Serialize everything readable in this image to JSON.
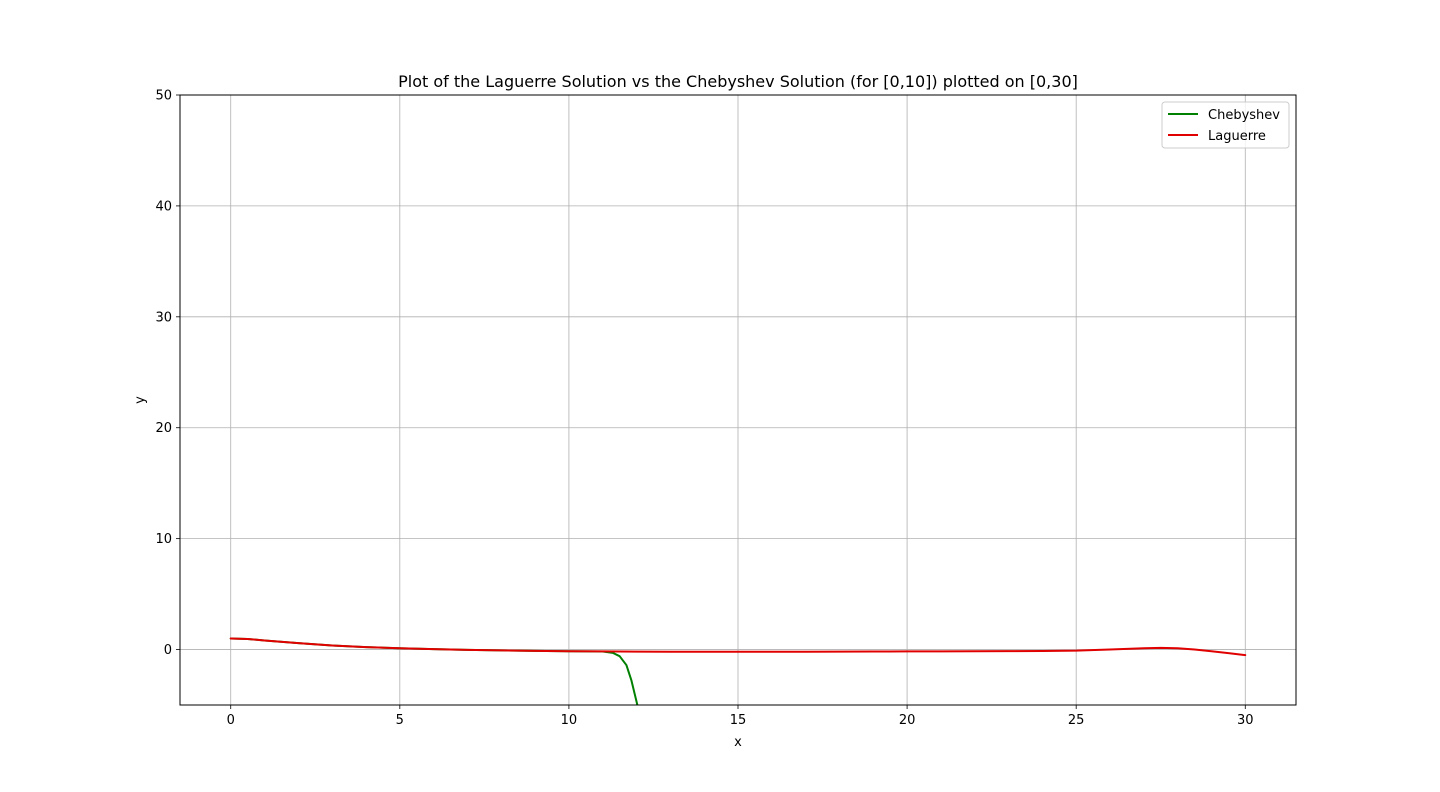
{
  "chart_data": {
    "type": "line",
    "title": "Plot of the Laguerre Solution vs the Chebyshev Solution (for [0,10]) plotted on [0,30]",
    "xlabel": "x",
    "ylabel": "y",
    "xlim": [
      -1.5,
      31.5
    ],
    "ylim": [
      -5,
      50
    ],
    "xticks": [
      0,
      5,
      10,
      15,
      20,
      25,
      30
    ],
    "yticks": [
      0,
      10,
      20,
      30,
      40,
      50
    ],
    "xtick_labels": [
      "0",
      "5",
      "10",
      "15",
      "20",
      "25",
      "30"
    ],
    "ytick_labels": [
      "0",
      "10",
      "20",
      "30",
      "40",
      "50"
    ],
    "grid": true,
    "legend_position": "upper right",
    "series": [
      {
        "name": "Chebyshev",
        "color": "#008000",
        "x": [
          0,
          0.5,
          1,
          2,
          3,
          4,
          5,
          6,
          7,
          8,
          9,
          10,
          10.5,
          11,
          11.3,
          11.5,
          11.7,
          11.85,
          12.0,
          12.1
        ],
        "y": [
          1.0,
          0.95,
          0.82,
          0.58,
          0.36,
          0.22,
          0.12,
          0.04,
          -0.03,
          -0.08,
          -0.12,
          -0.15,
          -0.16,
          -0.18,
          -0.3,
          -0.6,
          -1.4,
          -2.8,
          -4.7,
          -6.0
        ]
      },
      {
        "name": "Laguerre",
        "color": "#e00000",
        "x": [
          0,
          0.5,
          1,
          2,
          3,
          4,
          5,
          6,
          7,
          8,
          9,
          10,
          11,
          12,
          13,
          14,
          15,
          16,
          17,
          18,
          19,
          20,
          21,
          22,
          23,
          24,
          25,
          26,
          27,
          27.5,
          28,
          28.5,
          29,
          29.5,
          30
        ],
        "y": [
          1.0,
          0.95,
          0.82,
          0.58,
          0.36,
          0.22,
          0.12,
          0.04,
          -0.03,
          -0.08,
          -0.12,
          -0.15,
          -0.17,
          -0.19,
          -0.2,
          -0.2,
          -0.2,
          -0.2,
          -0.2,
          -0.19,
          -0.18,
          -0.17,
          -0.16,
          -0.15,
          -0.14,
          -0.13,
          -0.1,
          0.0,
          0.12,
          0.15,
          0.12,
          0.0,
          -0.15,
          -0.32,
          -0.5
        ]
      }
    ]
  }
}
